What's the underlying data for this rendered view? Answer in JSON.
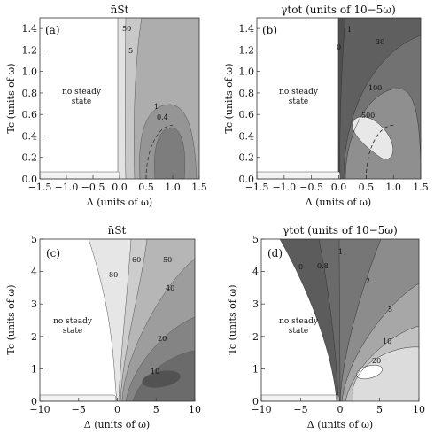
{
  "chart_data": [
    {
      "type": "contour",
      "panel_label": "(a)",
      "title": "n̄St",
      "xlabel": "Δ (units of ω)",
      "ylabel": "Tc (units of ω)",
      "xlim": [
        -1.5,
        1.5
      ],
      "ylim": [
        0.0,
        1.5
      ],
      "x_ticks": [
        "−1.5",
        "−1.0",
        "−0.5",
        "0.0",
        "0.5",
        "1.0",
        "1.5"
      ],
      "y_ticks": [
        "0.0",
        "0.2",
        "0.4",
        "0.6",
        "0.8",
        "1.0",
        "1.2",
        "1.4"
      ],
      "region_text": [
        "no steady",
        "state"
      ],
      "contour_levels": [
        "50",
        "5",
        "1",
        "0.4"
      ],
      "dashed_curve": "quarter circle centered at (1.0, 0) of radius 0.5",
      "colors": [
        "#ffffff",
        "#dcdcdc",
        "#c4c4c4",
        "#a6a6a6",
        "#8e8e8e",
        "#767676"
      ]
    },
    {
      "type": "contour",
      "panel_label": "(b)",
      "title": "γtot (units of 10−5ω)",
      "xlabel": "Δ (units of ω)",
      "ylabel": "Tc (units of ω)",
      "xlim": [
        -1.5,
        1.5
      ],
      "ylim": [
        0.0,
        1.5
      ],
      "x_ticks": [
        "−1.5",
        "−1.0",
        "−0.5",
        "0.0",
        "0.5",
        "1.0",
        "1.5"
      ],
      "y_ticks": [
        "0.0",
        "0.2",
        "0.4",
        "0.6",
        "0.8",
        "1.0",
        "1.2",
        "1.4"
      ],
      "region_text": [
        "no steady",
        "state"
      ],
      "contour_levels": [
        "0",
        "1",
        "30",
        "100",
        "500"
      ],
      "dashed_curve": "quarter circle centered at (1.0, 0) of radius 0.5",
      "colors": [
        "#ffffff",
        "#4f4f4f",
        "#6d6d6d",
        "#8a8a8a",
        "#b2b2b2",
        "#e6e6e6"
      ]
    },
    {
      "type": "contour",
      "panel_label": "(c)",
      "title": "n̄St",
      "xlabel": "Δ (units of ω)",
      "ylabel": "Tc (units of ω)",
      "xlim": [
        -10,
        10
      ],
      "ylim": [
        0,
        5
      ],
      "x_ticks": [
        "−10",
        "−5",
        "0",
        "5",
        "10"
      ],
      "y_ticks": [
        "0",
        "1",
        "2",
        "3",
        "4",
        "5"
      ],
      "region_text": [
        "no steady",
        "state"
      ],
      "contour_levels": [
        "80",
        "60",
        "50",
        "40",
        "20",
        "10"
      ],
      "colors": [
        "#ffffff",
        "#e6e6e6",
        "#cdcdcd",
        "#b5b5b5",
        "#9c9c9c",
        "#838383",
        "#6a6a6a",
        "#525252"
      ]
    },
    {
      "type": "contour",
      "panel_label": "(d)",
      "title": "γtot (units of 10−5ω)",
      "xlabel": "Δ (units of ω)",
      "ylabel": "Tc (units of ω)",
      "xlim": [
        -10,
        10
      ],
      "ylim": [
        0,
        5
      ],
      "x_ticks": [
        "−10",
        "−5",
        "0",
        "5",
        "10"
      ],
      "y_ticks": [
        "0",
        "1",
        "2",
        "3",
        "4",
        "5"
      ],
      "region_text": [
        "no steady",
        "state"
      ],
      "contour_levels": [
        "0",
        "0.8",
        "1",
        "2",
        "5",
        "10",
        "20"
      ],
      "colors": [
        "#ffffff",
        "#5e5e5e",
        "#707070",
        "#8a8a8a",
        "#a3a3a3",
        "#bcbcbc",
        "#d6d6d6",
        "#f0f0f0"
      ]
    }
  ]
}
